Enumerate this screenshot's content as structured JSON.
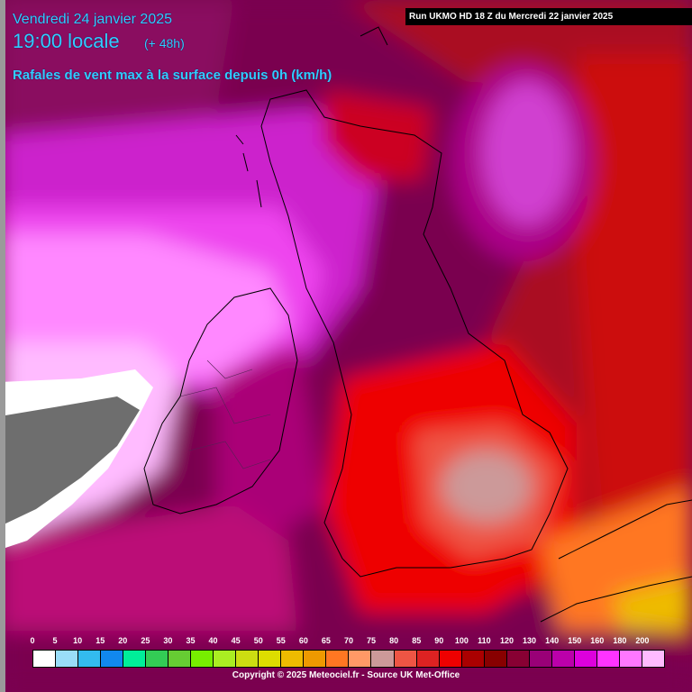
{
  "header": {
    "date": "Vendredi 24 janvier 2025",
    "time": "19:00 locale",
    "offset": "(+ 48h)",
    "parameter": "Rafales de vent max à la surface depuis 0h (km/h)"
  },
  "run_info": "Run UKMO HD 18 Z du Mercredi 22 janvier 2025",
  "legend": {
    "labels": [
      "0",
      "5",
      "10",
      "15",
      "20",
      "25",
      "30",
      "35",
      "40",
      "45",
      "50",
      "55",
      "60",
      "65",
      "70",
      "75",
      "80",
      "85",
      "90",
      "100",
      "110",
      "120",
      "130",
      "140",
      "150",
      "160",
      "180",
      "200"
    ],
    "colors": [
      "#ffffff",
      "#99ddf8",
      "#33bbee",
      "#1188ee",
      "#00ee99",
      "#33cc55",
      "#66cc33",
      "#77ee00",
      "#aaee22",
      "#ccdd11",
      "#dddd00",
      "#eebb00",
      "#ee9900",
      "#ff7722",
      "#ff9966",
      "#cc9999",
      "#ee5544",
      "#dd2222",
      "#ee0000",
      "#aa0000",
      "#880000",
      "#880033",
      "#990077",
      "#bb00aa",
      "#dd00dd",
      "#ff33ff",
      "#ff77ff",
      "#ffbbff"
    ]
  },
  "copyright": "Copyright © 2025 Meteociel.fr - Source UK Met-Office",
  "accent_color": "#33ccff"
}
